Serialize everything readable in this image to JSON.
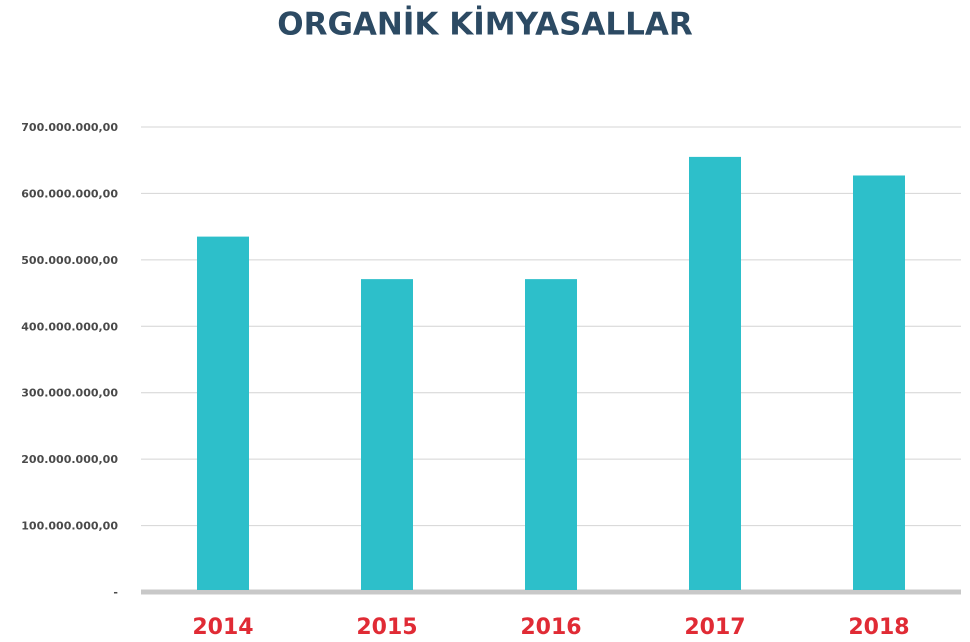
{
  "chart_data": {
    "type": "bar",
    "title": "ORGANİK KİMYASALLAR",
    "categories": [
      "2014",
      "2015",
      "2016",
      "2017",
      "2018"
    ],
    "values": [
      535000000,
      471000000,
      471000000,
      655000000,
      627000000
    ],
    "color": "#2dbfca",
    "ylim": [
      0,
      700000000
    ],
    "yticks": [
      {
        "value": 0,
        "label": "-"
      },
      {
        "value": 100000000,
        "label": "100.000.000,00"
      },
      {
        "value": 200000000,
        "label": "200.000.000,00"
      },
      {
        "value": 300000000,
        "label": "300.000.000,00"
      },
      {
        "value": 400000000,
        "label": "400.000.000,00"
      },
      {
        "value": 500000000,
        "label": "500.000.000,00"
      },
      {
        "value": 600000000,
        "label": "600.000.000,00"
      },
      {
        "value": 700000000,
        "label": "700.000.000,00"
      }
    ],
    "grid": true
  }
}
